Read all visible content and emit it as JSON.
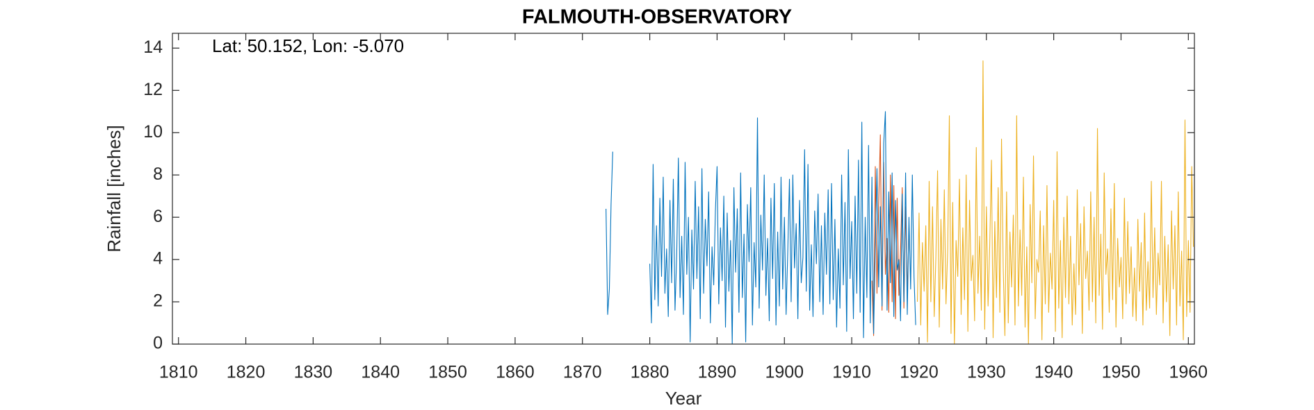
{
  "chart_data": {
    "type": "line",
    "title": "FALMOUTH-OBSERVATORY",
    "annotation": "Lat: 50.152, Lon: -5.070",
    "x_label": "Year",
    "y_label": "Rainfall [inches]",
    "xlim": [
      1809.1,
      1960.9
    ],
    "ylim": [
      0,
      14.7
    ],
    "xticks": [
      1810,
      1820,
      1830,
      1840,
      1850,
      1860,
      1870,
      1880,
      1890,
      1900,
      1910,
      1920,
      1930,
      1940,
      1950,
      1960
    ],
    "yticks": [
      0,
      2,
      4,
      6,
      8,
      10,
      12,
      14
    ],
    "grid": false,
    "series": [
      {
        "color": "#EDB120",
        "x": [
          1919.75,
          1920,
          1920.25,
          1920.5,
          1920.75,
          1921,
          1921.25,
          1921.5,
          1921.75,
          1922,
          1922.25,
          1922.5,
          1922.75,
          1923,
          1923.25,
          1923.5,
          1923.75,
          1924,
          1924.25,
          1924.5,
          1924.75,
          1925,
          1925.25,
          1925.5,
          1925.75,
          1926,
          1926.25,
          1926.5,
          1926.75,
          1927,
          1927.25,
          1927.5,
          1927.75,
          1928,
          1928.25,
          1928.5,
          1928.75,
          1929,
          1929.25,
          1929.5,
          1929.75,
          1930,
          1930.25,
          1930.5,
          1930.75,
          1931,
          1931.25,
          1931.5,
          1931.75,
          1932,
          1932.25,
          1932.5,
          1932.75,
          1933,
          1933.25,
          1933.5,
          1933.75,
          1934,
          1934.25,
          1934.5,
          1934.75,
          1935,
          1935.25,
          1935.5,
          1935.75,
          1936,
          1936.25,
          1936.5,
          1936.75,
          1937,
          1937.25,
          1937.5,
          1937.75,
          1938,
          1938.25,
          1938.5,
          1938.75,
          1939,
          1939.25,
          1939.5,
          1939.75,
          1940,
          1940.25,
          1940.5,
          1940.75,
          1941,
          1941.25,
          1941.5,
          1941.75,
          1942,
          1942.25,
          1942.5,
          1942.75,
          1943,
          1943.25,
          1943.5,
          1943.75,
          1944,
          1944.25,
          1944.5,
          1944.75,
          1945,
          1945.25,
          1945.5,
          1945.75,
          1946,
          1946.25,
          1946.5,
          1946.75,
          1947,
          1947.25,
          1947.5,
          1947.75,
          1948,
          1948.25,
          1948.5,
          1948.75,
          1949,
          1949.25,
          1949.5,
          1949.75,
          1950,
          1950.25,
          1950.5,
          1950.75,
          1951,
          1951.25,
          1951.5,
          1951.75,
          1952,
          1952.25,
          1952.5,
          1952.75,
          1953,
          1953.25,
          1953.5,
          1953.75,
          1954,
          1954.25,
          1954.5,
          1954.75,
          1955,
          1955.25,
          1955.5,
          1955.75,
          1956,
          1956.25,
          1956.5,
          1956.75,
          1957,
          1957.25,
          1957.5,
          1957.75,
          1958,
          1958.25,
          1958.5,
          1958.75,
          1959,
          1959.25,
          1959.5,
          1959.75,
          1960,
          1960.25,
          1960.5,
          1960.75
        ],
        "values": [
          2.0,
          6.2,
          0.9,
          4.8,
          2.5,
          5.6,
          0.1,
          7.7,
          2.0,
          6.5,
          1.3,
          4.1,
          8.2,
          0.8,
          5.9,
          2.6,
          7.3,
          1.9,
          4.4,
          10.8,
          0.5,
          6.7,
          0.0,
          4.9,
          3.2,
          7.8,
          1.4,
          5.5,
          2.1,
          8.0,
          0.6,
          6.8,
          3.0,
          4.2,
          1.1,
          9.3,
          2.4,
          5.1,
          1.6,
          13.4,
          0.7,
          6.5,
          1.8,
          4.7,
          8.7,
          0.3,
          5.8,
          2.2,
          7.4,
          1.5,
          9.7,
          3.6,
          0.4,
          7.2,
          1.0,
          5.3,
          2.7,
          6.1,
          0.9,
          10.8,
          1.8,
          5.4,
          2.3,
          7.9,
          0.8,
          4.6,
          0.0,
          6.6,
          2.9,
          8.9,
          1.2,
          4.0,
          3.4,
          6.3,
          0.2,
          5.6,
          1.9,
          7.5,
          1.5,
          4.3,
          2.6,
          6.8,
          0.6,
          9.1,
          1.7,
          4.9,
          0.3,
          6.0,
          2.2,
          7.0,
          1.9,
          5.1,
          0.9,
          3.8,
          1.4,
          7.3,
          2.8,
          5.7,
          0.5,
          6.5,
          3.1,
          4.4,
          1.6,
          7.2,
          2.0,
          6.0,
          1.0,
          10.2,
          2.3,
          5.2,
          0.7,
          8.1,
          3.3,
          4.5,
          1.5,
          6.4,
          2.1,
          7.6,
          0.8,
          5.0,
          2.7,
          4.1,
          1.2,
          6.9,
          1.9,
          5.8,
          2.4,
          4.6,
          1.3,
          3.6,
          1.1,
          5.9,
          2.5,
          4.8,
          0.9,
          6.2,
          1.6,
          3.9,
          1.7,
          7.7,
          2.2,
          5.5,
          1.4,
          4.3,
          2.8,
          7.7,
          1.0,
          5.1,
          2.0,
          4.7,
          0.4,
          6.3,
          2.6,
          5.6,
          0.9,
          7.2,
          1.8,
          4.4,
          0.2,
          10.6,
          1.3,
          4.9,
          1.5,
          8.4,
          4.6
        ]
      },
      {
        "color": "#D95319",
        "x": [
          1913,
          1913.25,
          1913.5,
          1913.75,
          1914,
          1914.25,
          1914.5,
          1914.75,
          1915,
          1915.25,
          1915.5,
          1915.75,
          1916,
          1916.25,
          1916.5,
          1916.75,
          1917,
          1917.25,
          1917.5,
          1917.75,
          1918,
          1918.25,
          1918.5
        ],
        "values": [
          3.0,
          0.4,
          8.4,
          2.4,
          6.5,
          9.9,
          1.6,
          8.6,
          3.3,
          5.0,
          1.5,
          8.0,
          2.0,
          7.5,
          1.2,
          6.9,
          2.3,
          4.4,
          7.4,
          1.7,
          6.5,
          2.4,
          5.5
        ]
      },
      {
        "color": "#0072BD",
        "x": [
          1873.5,
          1873.75,
          1874,
          1874.25,
          1874.5,
          1877,
          1880,
          1880.25,
          1880.5,
          1880.75,
          1881,
          1881.25,
          1881.5,
          1881.75,
          1882,
          1882.25,
          1882.5,
          1882.75,
          1883,
          1883.25,
          1883.5,
          1883.75,
          1884,
          1884.25,
          1884.5,
          1884.75,
          1885,
          1885.25,
          1885.5,
          1885.75,
          1886,
          1886.25,
          1886.5,
          1886.75,
          1887,
          1887.25,
          1887.5,
          1887.75,
          1888,
          1888.25,
          1888.5,
          1888.75,
          1889,
          1889.25,
          1889.5,
          1889.75,
          1890,
          1890.25,
          1890.5,
          1890.75,
          1891,
          1891.25,
          1891.5,
          1891.75,
          1892,
          1892.25,
          1892.5,
          1892.75,
          1893,
          1893.25,
          1893.5,
          1893.75,
          1894,
          1894.25,
          1894.5,
          1894.75,
          1895,
          1895.25,
          1895.5,
          1895.75,
          1896,
          1896.25,
          1896.5,
          1896.75,
          1897,
          1897.25,
          1897.5,
          1897.75,
          1898,
          1898.25,
          1898.5,
          1898.75,
          1899,
          1899.25,
          1899.5,
          1899.75,
          1900,
          1900.25,
          1900.5,
          1900.75,
          1901,
          1901.25,
          1901.5,
          1901.75,
          1902,
          1902.25,
          1902.5,
          1902.75,
          1903,
          1903.25,
          1903.5,
          1903.75,
          1904,
          1904.25,
          1904.5,
          1904.75,
          1905,
          1905.25,
          1905.5,
          1905.75,
          1906,
          1906.25,
          1906.5,
          1906.75,
          1907,
          1907.25,
          1907.5,
          1907.75,
          1908,
          1908.25,
          1908.5,
          1908.75,
          1909,
          1909.25,
          1909.5,
          1909.75,
          1910,
          1910.25,
          1910.5,
          1910.75,
          1911,
          1911.25,
          1911.5,
          1911.75,
          1912,
          1912.25,
          1912.5,
          1912.75,
          1913,
          1913.25,
          1913.5,
          1913.75,
          1914,
          1914.25,
          1914.5,
          1914.75,
          1915,
          1915.25,
          1915.5,
          1915.75,
          1916,
          1916.25,
          1916.5,
          1916.75,
          1917,
          1917.25,
          1917.5,
          1917.75,
          1918,
          1918.25,
          1918.5,
          1918.75,
          1919,
          1919.25,
          1919.5
        ],
        "values": [
          6.4,
          1.4,
          2.6,
          6.6,
          9.1,
          null,
          3.8,
          1.0,
          8.5,
          2.1,
          5.6,
          1.8,
          6.9,
          3.2,
          7.9,
          2.4,
          4.5,
          1.3,
          6.8,
          2.9,
          7.8,
          1.6,
          4.2,
          8.8,
          2.2,
          5.1,
          1.4,
          8.6,
          3.3,
          6.0,
          0.1,
          5.4,
          2.6,
          7.7,
          3.1,
          6.5,
          1.2,
          8.3,
          2.4,
          5.9,
          3.7,
          7.2,
          1.0,
          4.6,
          2.8,
          6.3,
          8.4,
          1.9,
          5.5,
          3.0,
          7.0,
          0.8,
          6.2,
          2.5,
          4.9,
          0.0,
          7.4,
          3.4,
          6.4,
          1.5,
          8.1,
          2.2,
          5.2,
          0.1,
          6.6,
          3.9,
          7.4,
          0.9,
          4.8,
          2.7,
          10.7,
          1.7,
          6.1,
          3.5,
          8.0,
          2.3,
          5.0,
          1.1,
          6.9,
          3.1,
          7.6,
          0.9,
          5.3,
          1.8,
          7.9,
          2.6,
          6.0,
          1.4,
          4.4,
          7.8,
          2.0,
          8.0,
          3.6,
          5.7,
          1.2,
          6.8,
          2.9,
          4.1,
          9.2,
          2.5,
          8.5,
          1.6,
          4.7,
          1.3,
          6.3,
          3.8,
          7.1,
          2.0,
          5.6,
          1.4,
          6.2,
          3.3,
          7.3,
          1.9,
          7.6,
          2.1,
          5.9,
          0.8,
          4.5,
          1.7,
          8.0,
          2.8,
          6.7,
          0.6,
          9.2,
          3.1,
          5.8,
          1.2,
          7.0,
          2.4,
          8.7,
          1.5,
          10.5,
          0.3,
          6.0,
          2.2,
          9.4,
          1.0,
          7.9,
          0.5,
          4.6,
          8.3,
          2.7,
          6.5,
          1.8,
          9.5,
          11.0,
          1.6,
          7.2,
          2.9,
          8.1,
          1.3,
          6.8,
          3.5,
          4.0,
          1.1,
          7.1,
          2.0,
          8.1,
          1.4,
          6.0,
          2.6,
          8.0,
          3.2,
          0.9
        ]
      }
    ]
  }
}
